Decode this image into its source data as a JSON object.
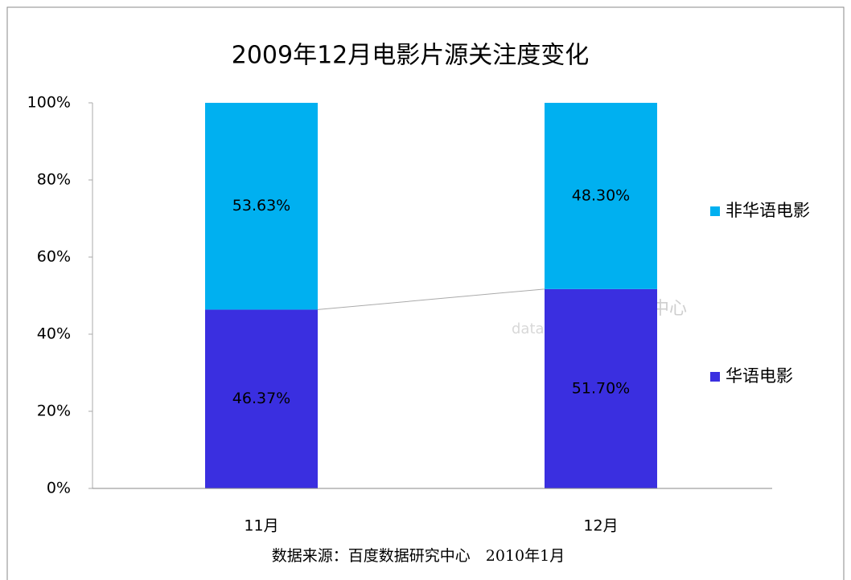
{
  "chart_data": {
    "type": "stacked_bar",
    "title": "2009年12月电影片源关注度变化",
    "categories": [
      "11月",
      "12月"
    ],
    "series": [
      {
        "name": "华语电影",
        "color": "#3a2fe0",
        "values": [
          46.37,
          51.7
        ],
        "value_labels": [
          "46.37%",
          "51.70%"
        ]
      },
      {
        "name": "非华语电影",
        "color": "#00b0f0",
        "values": [
          53.63,
          48.3
        ],
        "value_labels": [
          "53.63%",
          "48.30%"
        ]
      }
    ],
    "ylim": [
      0,
      100
    ],
    "yticks": [
      {
        "value": 0,
        "label": "0%"
      },
      {
        "value": 20,
        "label": "20%"
      },
      {
        "value": 40,
        "label": "40%"
      },
      {
        "value": 60,
        "label": "60%"
      },
      {
        "value": 80,
        "label": "80%"
      },
      {
        "value": 100,
        "label": "100%"
      }
    ],
    "legend": "right",
    "source": "数据来源：百度数据研究中心　2010年1月",
    "watermark": [
      "数据研究中心",
      "data.baidu.com"
    ]
  }
}
